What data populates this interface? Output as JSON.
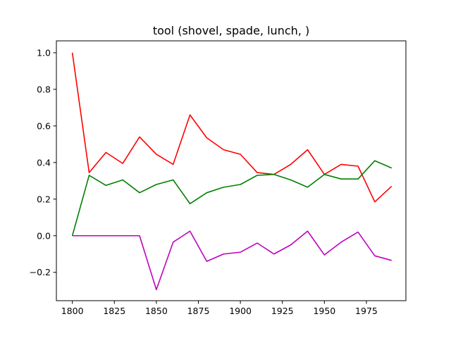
{
  "chart_data": {
    "type": "line",
    "title": "tool (shovel, spade, lunch, )",
    "xlabel": "",
    "ylabel": "",
    "xlim": [
      1790.5,
      1998.5
    ],
    "ylim": [
      -0.355,
      1.065
    ],
    "grid": false,
    "x": [
      1800,
      1810,
      1820,
      1830,
      1840,
      1850,
      1860,
      1870,
      1880,
      1890,
      1900,
      1910,
      1920,
      1930,
      1940,
      1950,
      1960,
      1970,
      1980,
      1990
    ],
    "x_ticks": [
      1800,
      1825,
      1850,
      1875,
      1900,
      1925,
      1950,
      1975
    ],
    "y_ticks": [
      -0.2,
      0.0,
      0.2,
      0.4,
      0.6,
      0.8,
      1.0
    ],
    "x_tick_labels": [
      "1800",
      "1825",
      "1850",
      "1875",
      "1900",
      "1925",
      "1950",
      "1975"
    ],
    "y_tick_labels": [
      "−0.2",
      "0.0",
      "0.2",
      "0.4",
      "0.6",
      "0.8",
      "1.0"
    ],
    "series": [
      {
        "color": "#ff0000",
        "values": [
          1.0,
          0.345,
          0.455,
          0.395,
          0.54,
          0.445,
          0.39,
          0.66,
          0.535,
          0.47,
          0.445,
          0.345,
          0.335,
          0.39,
          0.47,
          0.335,
          0.39,
          0.38,
          0.185,
          0.27
        ]
      },
      {
        "color": "#008000",
        "values": [
          0.0,
          0.33,
          0.275,
          0.305,
          0.235,
          0.28,
          0.305,
          0.175,
          0.235,
          0.265,
          0.28,
          0.33,
          0.335,
          0.305,
          0.265,
          0.335,
          0.31,
          0.31,
          0.41,
          0.37
        ]
      },
      {
        "color": "#bf00bf",
        "values": [
          0.0,
          0.0,
          0.0,
          0.0,
          0.0,
          -0.295,
          -0.035,
          0.025,
          -0.14,
          -0.1,
          -0.09,
          -0.04,
          -0.1,
          -0.05,
          0.025,
          -0.105,
          -0.035,
          0.02,
          -0.11,
          -0.135
        ]
      }
    ]
  }
}
